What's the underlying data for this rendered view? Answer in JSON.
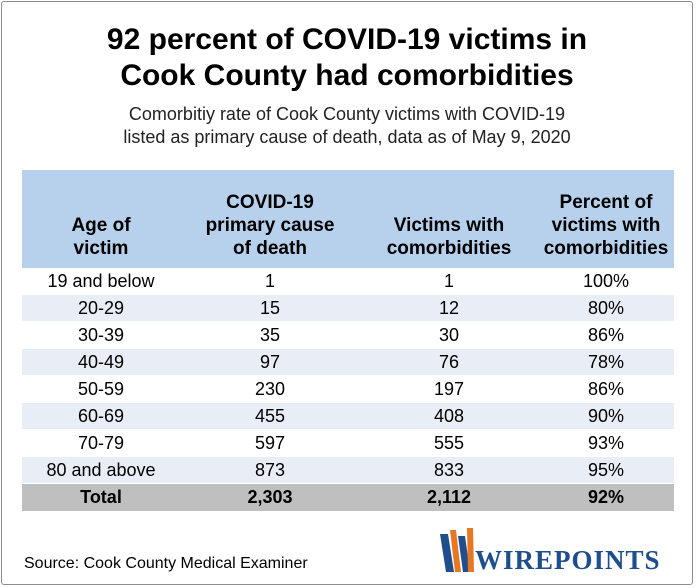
{
  "title_line1": "92 percent of COVID-19 victims in",
  "title_line2": "Cook County had comorbidities",
  "subtitle_line1": "Comorbitiy rate of Cook County victims with COVID-19",
  "subtitle_line2": "listed as primary cause of death, data as of May 9, 2020",
  "source": "Source: Cook County Medical Examiner",
  "logo_text": "WIREPOINTS",
  "colors": {
    "header_bg": "#b7d1ec",
    "alt_row_bg": "#e9eef6",
    "total_row_bg": "#bfbfbf",
    "logo_blue": "#1f4e8c",
    "logo_orange": "#e87722"
  },
  "chart_data": {
    "type": "table",
    "columns": [
      {
        "line1": "Age of",
        "line2": "victim",
        "line3": ""
      },
      {
        "line1": "COVID-19",
        "line2": "primary cause",
        "line3": "of death"
      },
      {
        "line1": "Victims with",
        "line2": "comorbidities",
        "line3": ""
      },
      {
        "line1": "Percent of",
        "line2": "victims with",
        "line3": "comorbidities"
      }
    ],
    "rows": [
      [
        "19 and below",
        "1",
        "1",
        "100%"
      ],
      [
        "20-29",
        "15",
        "12",
        "80%"
      ],
      [
        "30-39",
        "35",
        "30",
        "86%"
      ],
      [
        "40-49",
        "97",
        "76",
        "78%"
      ],
      [
        "50-59",
        "230",
        "197",
        "86%"
      ],
      [
        "60-69",
        "455",
        "408",
        "90%"
      ],
      [
        "70-79",
        "597",
        "555",
        "93%"
      ],
      [
        "80 and above",
        "873",
        "833",
        "95%"
      ]
    ],
    "total": [
      "Total",
      "2,303",
      "2,112",
      "92%"
    ]
  }
}
